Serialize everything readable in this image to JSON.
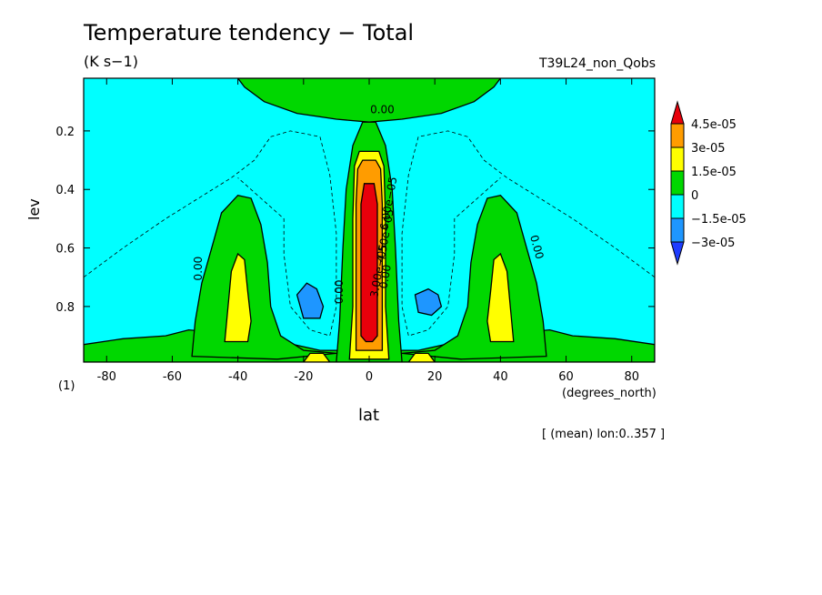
{
  "chart_data": {
    "type": "contour",
    "title": "Temperature tendency − Total",
    "units": "(K s−1)",
    "run_label": "T39L24_non_Qobs",
    "xlabel": "lat",
    "x_units": "(degrees_north)",
    "ylabel": "lev",
    "y_units": "(1)",
    "footnote": "[ (mean) lon:0..357 ]",
    "xlim": [
      -87,
      87
    ],
    "ylim": [
      0.99,
      0.02
    ],
    "x_ticks": [
      -80,
      -60,
      -40,
      -20,
      0,
      20,
      40,
      60,
      80
    ],
    "y_ticks": [
      0.2,
      0.4,
      0.6,
      0.8
    ],
    "colorbar": {
      "labels": [
        "4.5e-05",
        "3e-05",
        "1.5e-05",
        "0",
        "−1.5e-05",
        "−3e-05"
      ],
      "colors": [
        "#e8000b",
        "#ff9c00",
        "#ffff00",
        "#00d700",
        "#00ffff",
        "#1e96ff",
        "#1e3cff"
      ]
    },
    "contour_labels": [
      "0.00",
      "0.00",
      "0.00",
      "0.00",
      "0.00",
      "3.00e−05",
      "4.50e−05",
      "6.00e−05"
    ],
    "regions": {
      "upper_positive_center": {
        "lat": [
          -38,
          38
        ],
        "lev": [
          0.02,
          0.17
        ],
        "level": "0 to 1.5e-05"
      },
      "equatorial_heating_max": {
        "lat": [
          -3,
          3
        ],
        "lev": [
          0.38,
          0.9
        ],
        "level": "> 4.5e-05"
      },
      "midlatitude_heating_south": {
        "lat": [
          -55,
          -30
        ],
        "lev": [
          0.4,
          0.98
        ],
        "level": "0 to 3e-05"
      },
      "midlatitude_heating_north": {
        "lat": [
          30,
          55
        ],
        "lev": [
          0.4,
          0.98
        ],
        "level": "0 to 3e-05"
      },
      "subtropical_cooling_south": {
        "lat": [
          -22,
          -14
        ],
        "lev": [
          0.72,
          0.84
        ],
        "level": "< -1.5e-05"
      },
      "subtropical_cooling_north": {
        "lat": [
          14,
          22
        ],
        "lev": [
          0.74,
          0.83
        ],
        "level": "< -1.5e-05"
      }
    }
  }
}
